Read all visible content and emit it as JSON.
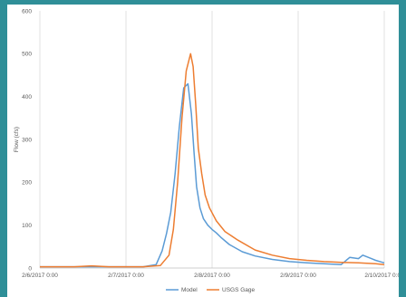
{
  "chart_data": {
    "type": "line",
    "ylabel": "Flow (cfs)",
    "xlabel": "",
    "ylim": [
      0,
      600
    ],
    "yticks": [
      0,
      100,
      200,
      300,
      400,
      500,
      600
    ],
    "xlim": [
      0,
      4
    ],
    "xtick_labels": [
      "2/6/2017 0:00",
      "2/7/2017 0:00",
      "2/8/2017 0:00",
      "2/9/2017 0:00",
      "2/10/2017 0:00"
    ],
    "grid": "vertical",
    "legend": "bottom",
    "series": [
      {
        "name": "Model",
        "color": "#5b9bd5",
        "x": [
          0,
          0.4,
          0.8,
          1.2,
          1.35,
          1.42,
          1.47,
          1.52,
          1.57,
          1.62,
          1.67,
          1.72,
          1.76,
          1.79,
          1.82,
          1.86,
          1.9,
          1.95,
          2.0,
          2.05,
          2.1,
          2.2,
          2.35,
          2.5,
          2.7,
          2.9,
          3.1,
          3.3,
          3.5,
          3.6,
          3.7,
          3.75,
          3.85,
          3.9,
          4.0
        ],
        "y": [
          3,
          3,
          3,
          3,
          8,
          40,
          80,
          130,
          220,
          330,
          420,
          430,
          360,
          270,
          190,
          140,
          115,
          100,
          90,
          82,
          72,
          55,
          38,
          28,
          20,
          15,
          12,
          10,
          8,
          25,
          22,
          30,
          22,
          18,
          12
        ]
      },
      {
        "name": "USGS Gage",
        "color": "#ed7d31",
        "x": [
          0,
          0.4,
          0.6,
          0.8,
          1.2,
          1.4,
          1.5,
          1.55,
          1.6,
          1.65,
          1.7,
          1.75,
          1.78,
          1.81,
          1.84,
          1.88,
          1.92,
          1.97,
          2.05,
          2.15,
          2.3,
          2.5,
          2.7,
          2.9,
          3.1,
          3.3,
          3.5,
          3.7,
          3.9,
          4.0
        ],
        "y": [
          3,
          3,
          5,
          3,
          3,
          6,
          30,
          90,
          200,
          350,
          460,
          500,
          470,
          380,
          280,
          220,
          170,
          140,
          110,
          85,
          65,
          42,
          30,
          22,
          18,
          15,
          13,
          12,
          10,
          8
        ]
      }
    ]
  }
}
